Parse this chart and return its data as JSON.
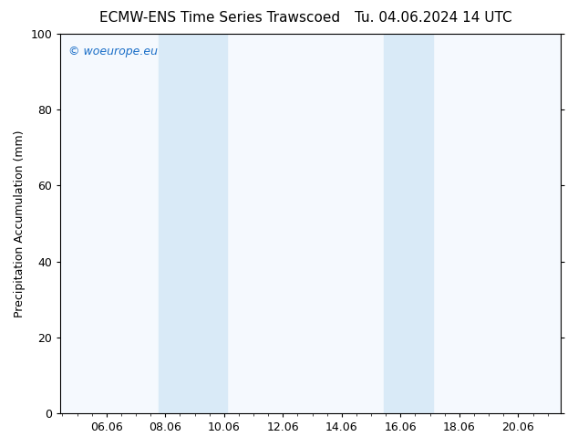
{
  "title_left": "ECMW-ENS Time Series Trawscoed",
  "title_right": "Tu. 04.06.2024 14 UTC",
  "ylabel": "Precipitation Accumulation (mm)",
  "watermark": "© woeurope.eu",
  "xlim_left": 4.5,
  "xlim_right": 21.5,
  "ylim_bottom": 0,
  "ylim_top": 100,
  "xticks": [
    6.06,
    8.06,
    10.06,
    12.06,
    14.06,
    16.06,
    18.06,
    20.06
  ],
  "xtick_labels": [
    "06.06",
    "08.06",
    "10.06",
    "12.06",
    "14.06",
    "16.06",
    "18.06",
    "20.06"
  ],
  "yticks": [
    0,
    20,
    40,
    60,
    80,
    100
  ],
  "shaded_bands": [
    {
      "xmin": 7.83,
      "xmax": 10.17
    },
    {
      "xmin": 15.5,
      "xmax": 17.17
    }
  ],
  "shade_color": "#d9eaf7",
  "background_color": "#ffffff",
  "plot_bg_color": "#f5f9fe",
  "watermark_color": "#1a6ec7",
  "title_fontsize": 11,
  "ylabel_fontsize": 9,
  "tick_fontsize": 9,
  "watermark_fontsize": 9
}
